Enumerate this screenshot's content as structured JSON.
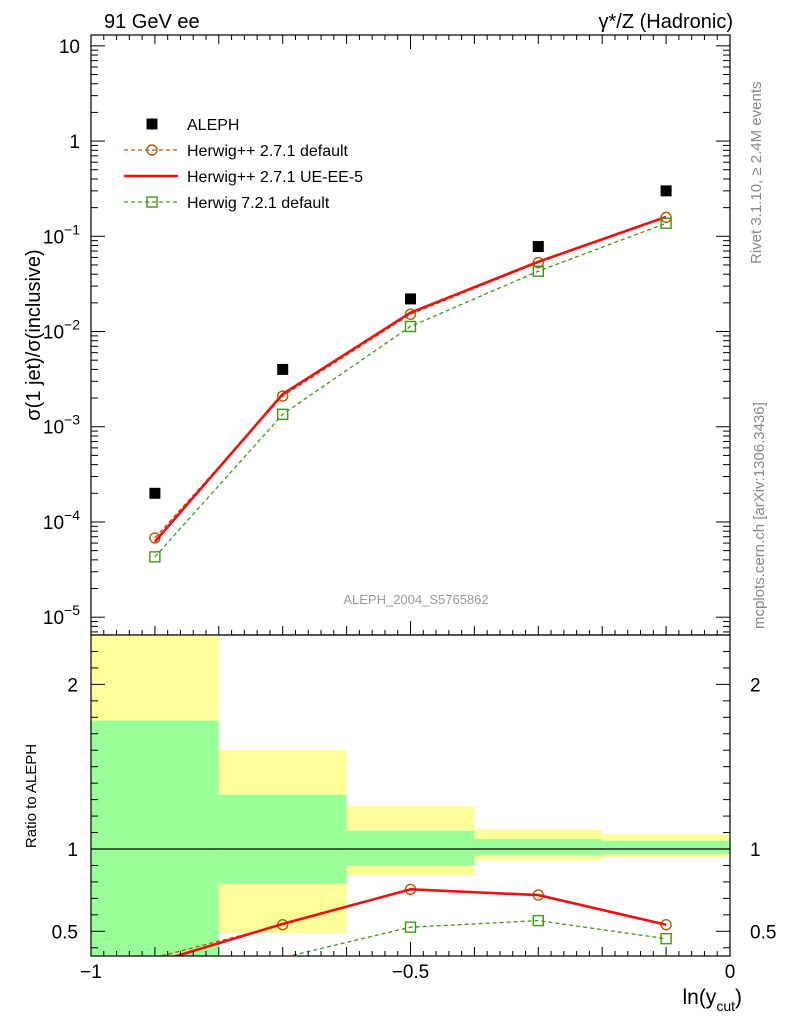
{
  "header": {
    "left_label": "91 GeV ee",
    "right_label": "γ*/Z (Hadronic)"
  },
  "side_labels": {
    "rivet": "Rivet 3.1.10, ≥ 2.4M events",
    "mcplots": "mcplots.cern.ch [arXiv:1306.3436]"
  },
  "analysis_label": "ALEPH_2004_S5765862",
  "legend": {
    "items": [
      {
        "label": "ALEPH",
        "style": "square-filled",
        "color": "#000000"
      },
      {
        "label": "Herwig++ 2.7.1 default",
        "style": "dashed-circle",
        "color": "#b35900"
      },
      {
        "label": "Herwig++ 2.7.1 UE-EE-5",
        "style": "solid",
        "color": "#ee1111"
      },
      {
        "label": "Herwig 7.2.1 default",
        "style": "dashed-square",
        "color": "#3a9a10"
      }
    ]
  },
  "chart_data": [
    {
      "type": "scatter",
      "panel": "main",
      "ylabel": "σ(1 jet)/σ(inclusive)",
      "yscale": "log",
      "ylim": [
        6.5e-06,
        13
      ],
      "xlim": [
        -1.0,
        0.0
      ],
      "yticks": [
        {
          "value": 1e-05,
          "mant": "10",
          "exp": "−5"
        },
        {
          "value": 0.0001,
          "mant": "10",
          "exp": "−4"
        },
        {
          "value": 0.001,
          "mant": "10",
          "exp": "−3"
        },
        {
          "value": 0.01,
          "mant": "10",
          "exp": "−2"
        },
        {
          "value": 0.1,
          "mant": "10",
          "exp": "−1"
        },
        {
          "value": 1,
          "mant": "1",
          "exp": ""
        },
        {
          "value": 10,
          "mant": "10",
          "exp": ""
        }
      ],
      "series": [
        {
          "name": "ALEPH",
          "x": [
            -0.9,
            -0.7,
            -0.5,
            -0.3,
            -0.1
          ],
          "y": [
            0.0002,
            0.004,
            0.022,
            0.078,
            0.3
          ]
        },
        {
          "name": "Herwig++ 2.7.1 default",
          "x": [
            -0.9,
            -0.7,
            -0.5,
            -0.3,
            -0.1
          ],
          "y": [
            6.8e-05,
            0.0021,
            0.0152,
            0.053,
            0.158
          ]
        },
        {
          "name": "Herwig++ 2.7.1 UE-EE-5",
          "x": [
            -0.9,
            -0.7,
            -0.5,
            -0.3,
            -0.1
          ],
          "y": [
            6.2e-05,
            0.0022,
            0.0158,
            0.054,
            0.16
          ]
        },
        {
          "name": "Herwig 7.2.1 default",
          "x": [
            -0.9,
            -0.7,
            -0.5,
            -0.3,
            -0.1
          ],
          "y": [
            4.3e-05,
            0.00135,
            0.0113,
            0.043,
            0.137
          ]
        }
      ]
    },
    {
      "type": "line",
      "panel": "ratio",
      "ylabel": "Ratio to ALEPH",
      "xlabel_main": "ln(y",
      "xlabel_sub": "cut",
      "xlabel_close": ")",
      "xlim": [
        -1.0,
        0.0
      ],
      "ylim": [
        0.35,
        2.3
      ],
      "xticks": [
        {
          "value": -1,
          "label": "−1"
        },
        {
          "value": -0.5,
          "label": "−0.5"
        },
        {
          "value": 0,
          "label": "0"
        }
      ],
      "yticks": [
        {
          "value": 0.5,
          "label": "0.5"
        },
        {
          "value": 1,
          "label": "1"
        },
        {
          "value": 2,
          "label": "2"
        }
      ],
      "bands": [
        {
          "x0": -1.0,
          "x1": -0.8,
          "yellow": [
            0.0,
            2.3
          ],
          "green": [
            0.0,
            1.78
          ]
        },
        {
          "x0": -0.8,
          "x1": -0.6,
          "yellow": [
            0.49,
            1.6
          ],
          "green": [
            0.79,
            1.33
          ]
        },
        {
          "x0": -0.6,
          "x1": -0.4,
          "yellow": [
            0.84,
            1.26
          ],
          "green": [
            0.9,
            1.11
          ]
        },
        {
          "x0": -0.4,
          "x1": -0.2,
          "yellow": [
            0.93,
            1.12
          ],
          "green": [
            0.96,
            1.06
          ]
        },
        {
          "x0": -0.2,
          "x1": 0.0,
          "yellow": [
            0.95,
            1.09
          ],
          "green": [
            0.97,
            1.05
          ]
        }
      ],
      "series": [
        {
          "name": "Herwig++ 2.7.1 default",
          "x": [
            -0.9,
            -0.7,
            -0.5,
            -0.3,
            -0.1
          ],
          "y": [
            0.34,
            0.54,
            0.755,
            0.72,
            0.54
          ]
        },
        {
          "name": "Herwig++ 2.7.1 UE-EE-5",
          "x": [
            -0.9,
            -0.7,
            -0.5,
            -0.3,
            -0.1
          ],
          "y": [
            0.31,
            0.545,
            0.755,
            0.72,
            0.54
          ]
        },
        {
          "name": "Herwig 7.2.1 default",
          "x": [
            -0.9,
            -0.7,
            -0.5,
            -0.3,
            -0.1
          ],
          "y": [
            0.215,
            0.34,
            0.525,
            0.565,
            0.455
          ]
        }
      ]
    }
  ],
  "colors": {
    "data": "#000000",
    "herwigpp_default": "#b35900",
    "herwigpp_ueee5": "#ee1111",
    "herwig7": "#3a9a10",
    "band_yellow": "#ffff99",
    "band_green": "#99ff99",
    "side_text": "#888888"
  }
}
